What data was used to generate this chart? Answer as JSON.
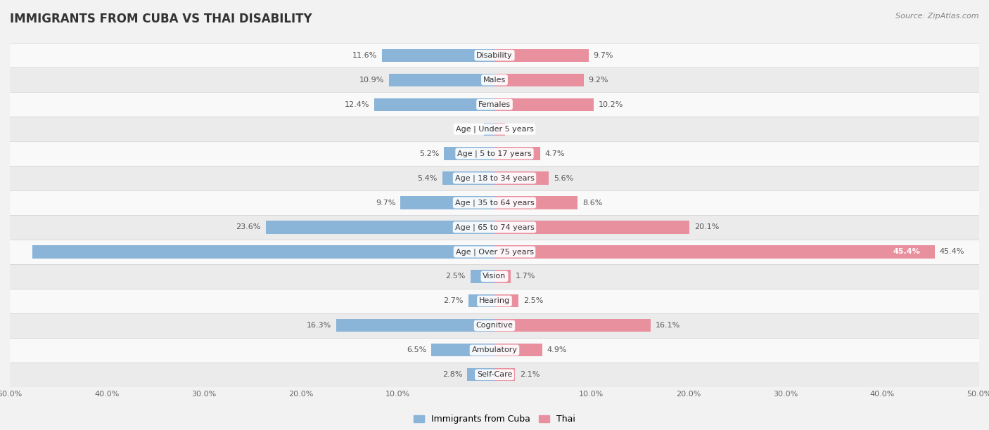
{
  "title": "IMMIGRANTS FROM CUBA VS THAI DISABILITY",
  "source": "Source: ZipAtlas.com",
  "categories": [
    "Disability",
    "Males",
    "Females",
    "Age | Under 5 years",
    "Age | 5 to 17 years",
    "Age | 18 to 34 years",
    "Age | 35 to 64 years",
    "Age | 65 to 74 years",
    "Age | Over 75 years",
    "Vision",
    "Hearing",
    "Cognitive",
    "Ambulatory",
    "Self-Care"
  ],
  "cuba_values": [
    11.6,
    10.9,
    12.4,
    1.1,
    5.2,
    5.4,
    9.7,
    23.6,
    47.7,
    2.5,
    2.7,
    16.3,
    6.5,
    2.8
  ],
  "thai_values": [
    9.7,
    9.2,
    10.2,
    1.1,
    4.7,
    5.6,
    8.6,
    20.1,
    45.4,
    1.7,
    2.5,
    16.1,
    4.9,
    2.1
  ],
  "cuba_color": "#8ab4d8",
  "thai_color": "#e8909e",
  "cuba_color_dark": "#5a9fd4",
  "thai_color_dark": "#e05070",
  "xlim": 50.0,
  "background_color": "#f2f2f2",
  "row_light_color": "#f9f9f9",
  "row_dark_color": "#ebebeb",
  "bar_height": 0.52,
  "title_fontsize": 12,
  "cat_fontsize": 8,
  "value_fontsize": 8,
  "legend_fontsize": 9,
  "source_fontsize": 8,
  "axis_tick_fontsize": 8
}
